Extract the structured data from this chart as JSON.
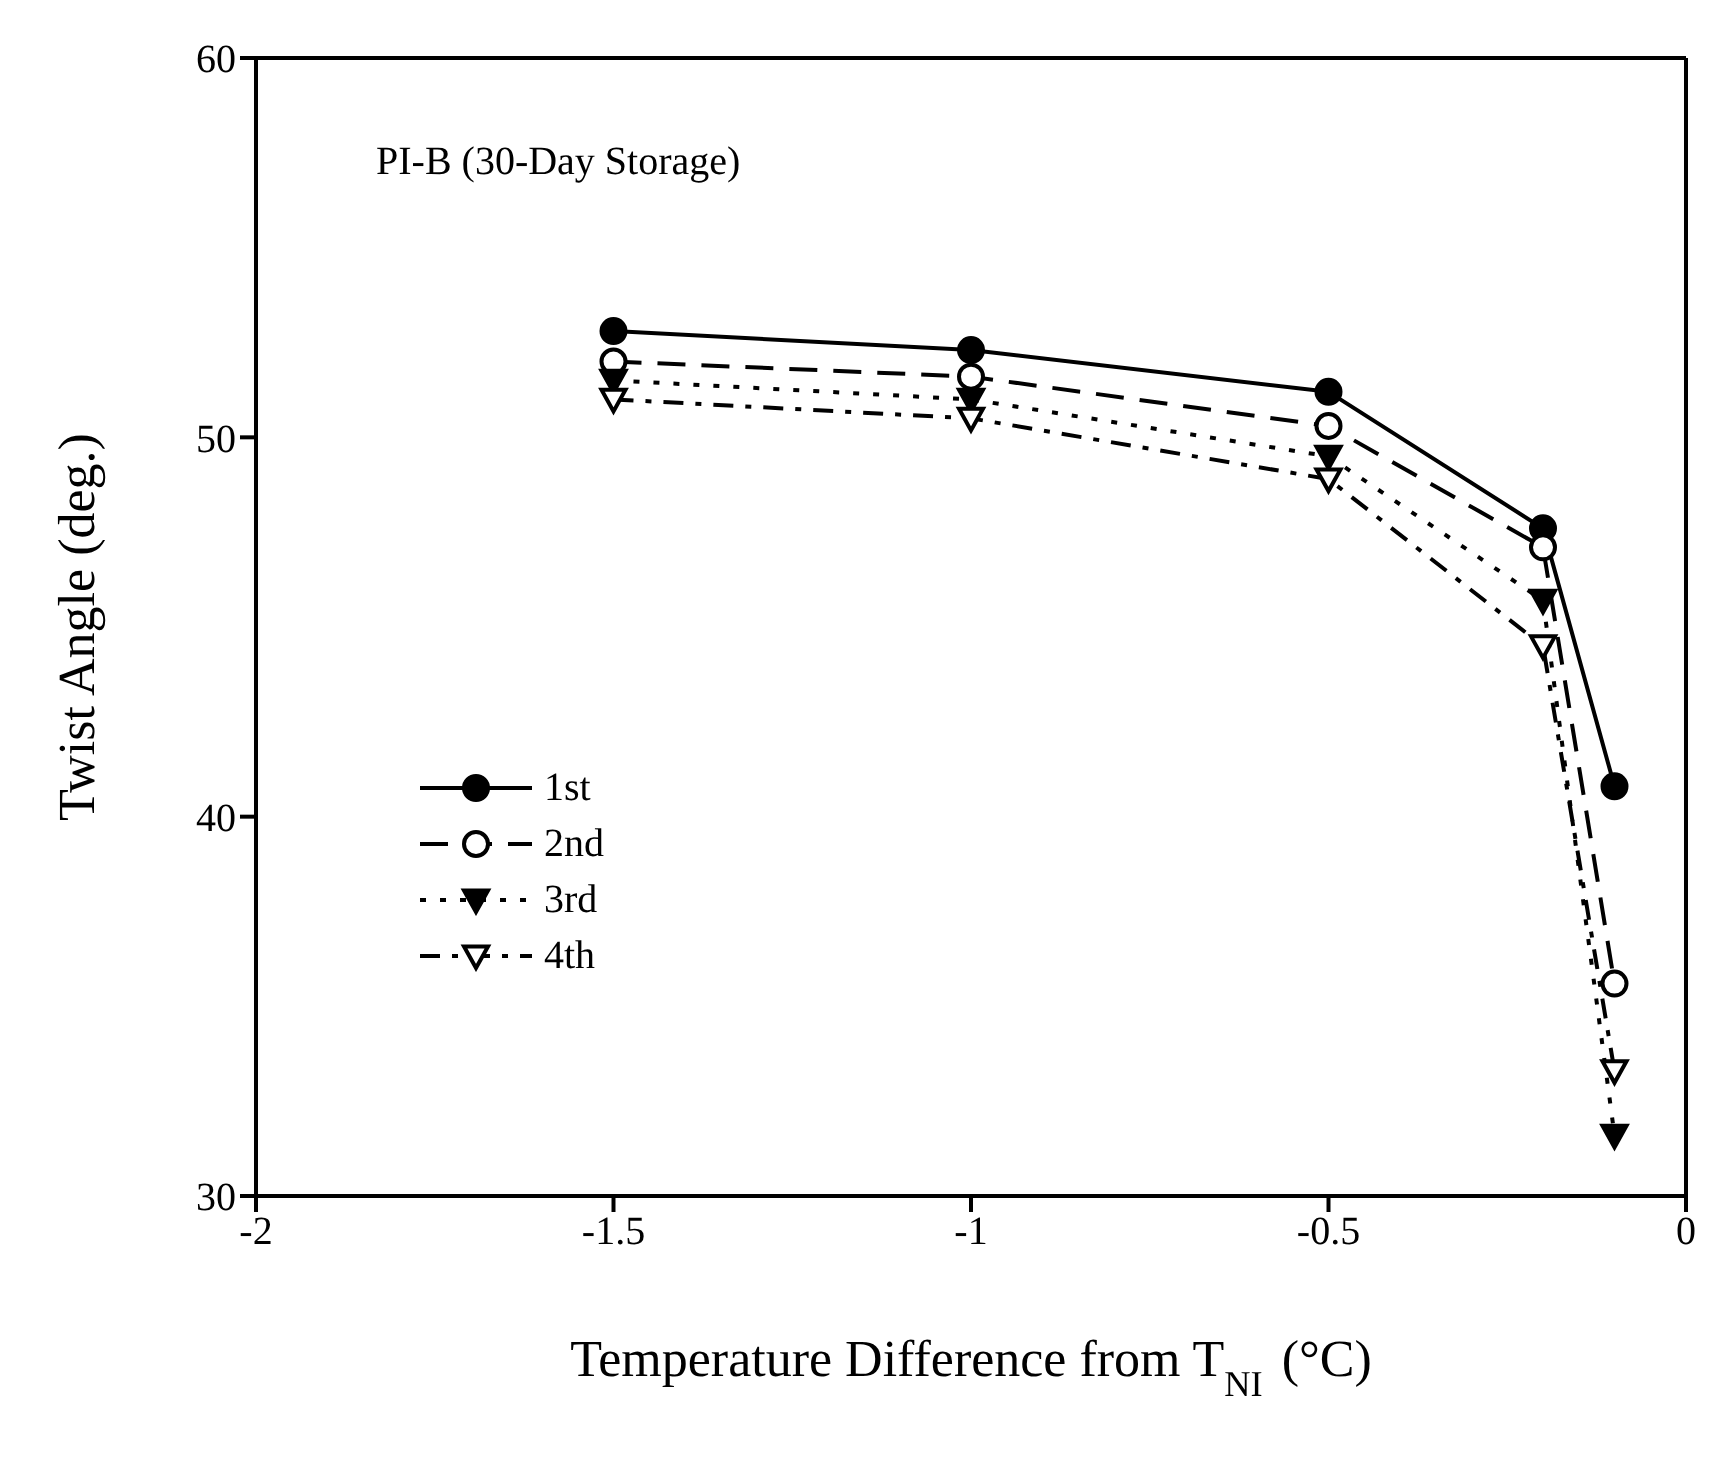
{
  "chart_data": {
    "type": "line",
    "xlabel": "Temperature Difference from T$_{NI}$ (°C)",
    "ylabel": "Twist Angle (deg.)",
    "annotations": [
      "PI-B (30-Day Storage)"
    ],
    "x": [
      -1.5,
      -1,
      -0.5,
      -0.2,
      -0.1
    ],
    "series": [
      {
        "name": "1st",
        "color": "#000000",
        "marker": "circle",
        "line_style": "solid",
        "values": [
          52.8,
          52.3,
          51.2,
          47.6,
          40.8
        ]
      },
      {
        "name": "2nd",
        "color": "#000000",
        "marker": "circle",
        "line_style": "dashed",
        "values": [
          52.0,
          51.6,
          50.3,
          47.1,
          35.6
        ]
      },
      {
        "name": "3rd",
        "color": "#000000",
        "marker": "triangle",
        "line_style": "dotted",
        "values": [
          51.5,
          51.0,
          49.5,
          45.7,
          31.6
        ]
      },
      {
        "name": "4th",
        "color": "#000000",
        "marker": "triangle",
        "line_style": "dashdot",
        "values": [
          51.0,
          50.5,
          48.9,
          44.5,
          33.3
        ]
      }
    ],
    "xlim": [
      -2,
      0
    ],
    "xticks": [
      -2,
      -1.5,
      -1,
      -0.5,
      0
    ],
    "ylim": [
      30,
      60
    ],
    "yticks": [
      30,
      40,
      50,
      60
    ],
    "grid": false,
    "legend": "left"
  }
}
